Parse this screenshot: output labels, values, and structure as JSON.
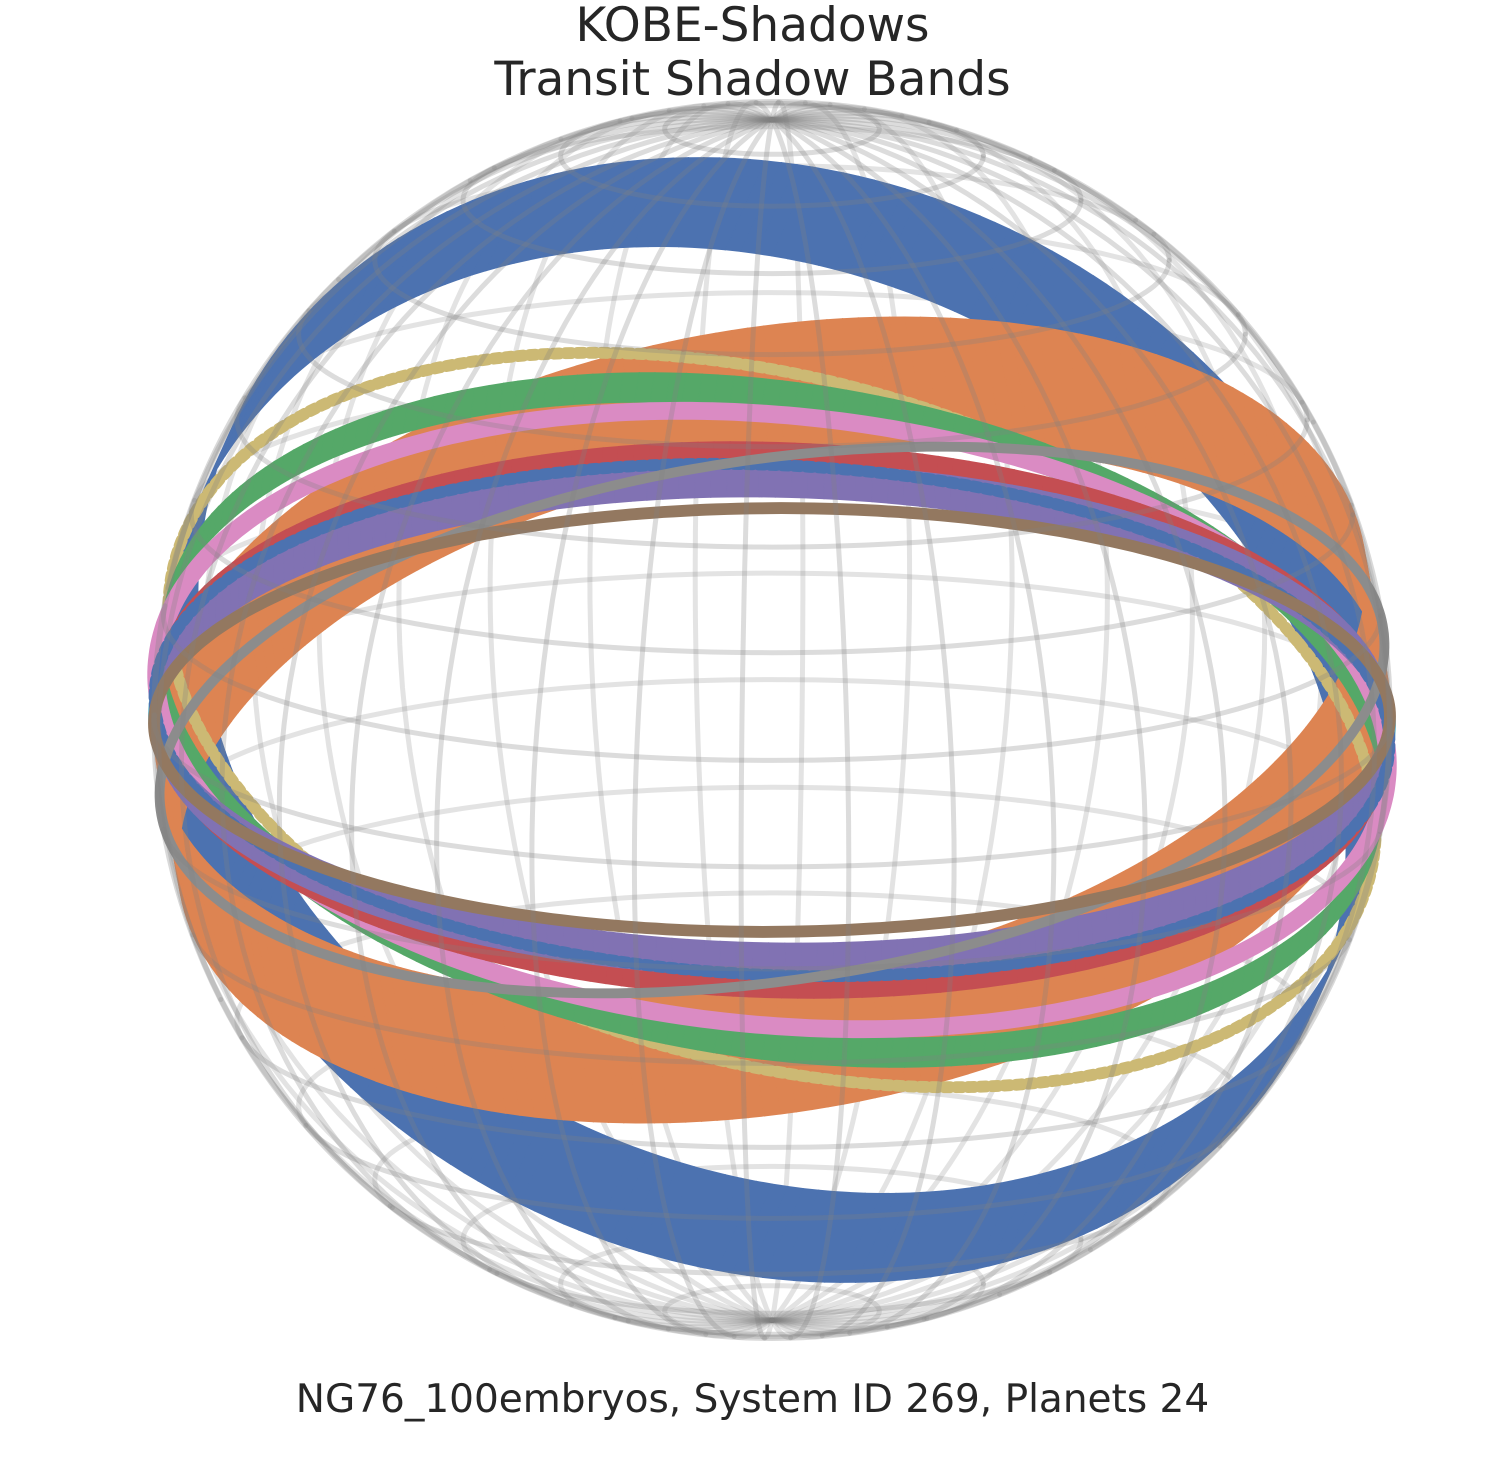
{
  "figure": {
    "title_line_1": "KOBE-Shadows",
    "title_line_2": "Transit Shadow Bands",
    "caption": "NG76_100embryos, System ID 269, Planets 24"
  },
  "sphere": {
    "wireframe_color": "#808080",
    "wireframe": true
  },
  "bands": [
    {
      "name": "blue-band",
      "color": "#4C72B0",
      "style": "wide"
    },
    {
      "name": "orange-band",
      "color": "#DD8452",
      "style": "wide"
    },
    {
      "name": "yellow-band",
      "color": "#CCB974",
      "style": "dotted"
    },
    {
      "name": "green-band",
      "color": "#55A868",
      "style": "medium"
    },
    {
      "name": "pink-band",
      "color": "#DA8BC3",
      "style": "thin"
    },
    {
      "name": "cyan-band",
      "color": "#64B5CD",
      "style": "thin"
    },
    {
      "name": "red-band",
      "color": "#C44E52",
      "style": "medium"
    },
    {
      "name": "purple-band",
      "color": "#8172B3",
      "style": "medium"
    },
    {
      "name": "dark-blue-band",
      "color": "#4C72B0",
      "style": "thin"
    },
    {
      "name": "gray-band",
      "color": "#8C8C8C",
      "style": "thin"
    },
    {
      "name": "brown-band",
      "color": "#937860",
      "style": "thin"
    }
  ]
}
